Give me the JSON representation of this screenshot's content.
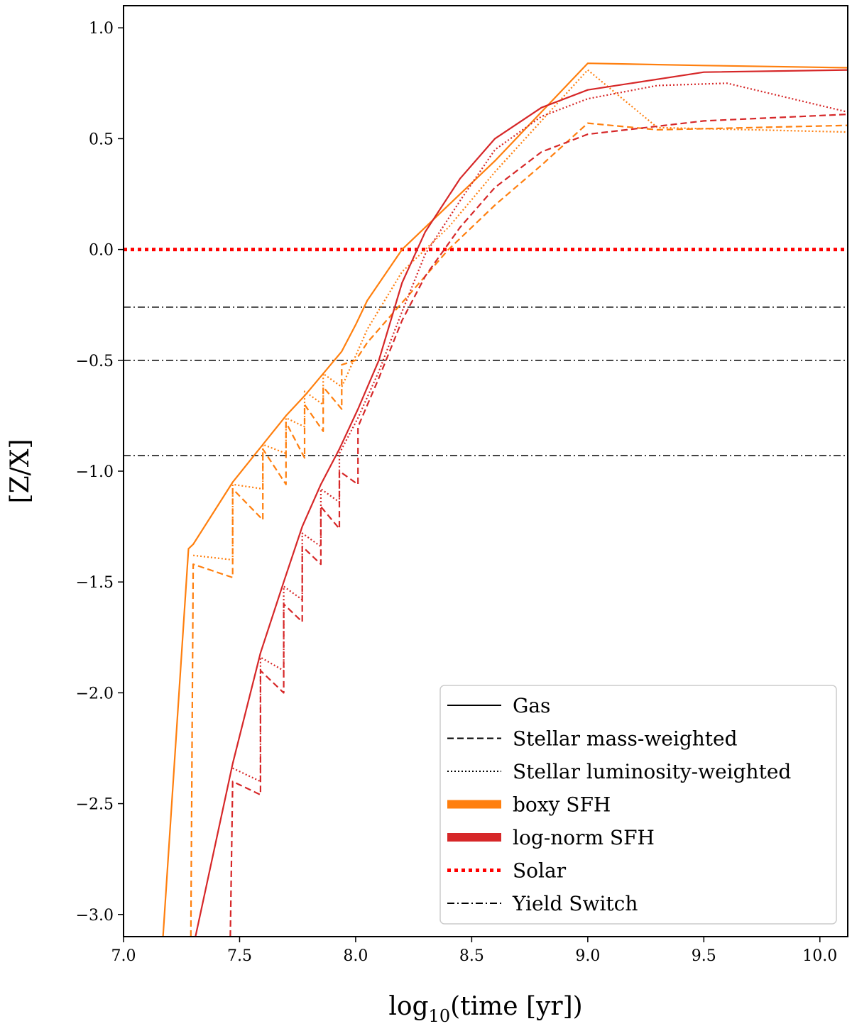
{
  "chart_data": {
    "type": "line",
    "title": "",
    "xlabel": "log10(time [yr])",
    "xlabel_parts": {
      "pre": "log",
      "sub": "10",
      "post": "(time [yr])"
    },
    "ylabel": "[Z/X]",
    "xlim": [
      7.0,
      10.12
    ],
    "ylim": [
      -3.1,
      1.1
    ],
    "x_ticks": [
      7.0,
      7.5,
      8.0,
      8.5,
      9.0,
      9.5,
      10.0
    ],
    "x_tick_labels": [
      "7.0",
      "7.5",
      "8.0",
      "8.5",
      "9.0",
      "9.5",
      "10.0"
    ],
    "y_ticks": [
      1.0,
      0.5,
      0.0,
      -0.5,
      -1.0,
      -1.5,
      -2.0,
      -2.5,
      -3.0
    ],
    "y_tick_labels": [
      "1.0",
      "0.5",
      "0.0",
      "−0.5",
      "−1.0",
      "−1.5",
      "−2.0",
      "−2.5",
      "−3.0"
    ],
    "grid": false,
    "legend_position": "bottom-right",
    "colors": {
      "boxy": "#ff7f0e",
      "lognorm": "#d62728",
      "solar": "#ff0000",
      "yield": "#000000"
    },
    "reference_lines": {
      "solar": 0.0,
      "yield_switch": [
        -0.26,
        -0.5,
        -0.93
      ]
    },
    "series": [
      {
        "name": "boxy SFH gas",
        "color": "boxy",
        "style": "solid",
        "x": [
          7.17,
          7.28,
          7.3,
          7.47,
          7.6,
          7.7,
          7.78,
          7.86,
          7.94,
          8.0,
          8.05,
          8.2,
          8.4,
          8.6,
          8.8,
          9.0,
          9.5,
          10.12
        ],
        "y": [
          -3.1,
          -1.35,
          -1.33,
          -1.05,
          -0.88,
          -0.75,
          -0.66,
          -0.56,
          -0.46,
          -0.34,
          -0.23,
          0.0,
          0.2,
          0.4,
          0.62,
          0.84,
          0.83,
          0.82
        ]
      },
      {
        "name": "boxy SFH mass-weighted",
        "color": "boxy",
        "style": "dashed",
        "x": [
          7.29,
          7.3,
          7.47,
          7.47,
          7.6,
          7.6,
          7.7,
          7.7,
          7.78,
          7.78,
          7.86,
          7.86,
          7.94,
          7.94,
          8.0,
          8.05,
          8.2,
          8.4,
          8.6,
          8.8,
          9.0,
          9.3,
          10.12
        ],
        "y": [
          -3.1,
          -1.42,
          -1.48,
          -1.08,
          -1.22,
          -0.9,
          -1.06,
          -0.78,
          -0.94,
          -0.7,
          -0.82,
          -0.62,
          -0.72,
          -0.52,
          -0.5,
          -0.42,
          -0.24,
          0.0,
          0.2,
          0.38,
          0.57,
          0.54,
          0.56
        ]
      },
      {
        "name": "boxy SFH luminosity-weighted",
        "color": "boxy",
        "style": "dotted",
        "x": [
          7.3,
          7.47,
          7.47,
          7.6,
          7.6,
          7.7,
          7.7,
          7.78,
          7.78,
          7.86,
          7.86,
          7.94,
          8.0,
          8.05,
          8.2,
          8.4,
          8.6,
          8.8,
          9.0,
          9.3,
          10.12
        ],
        "y": [
          -1.38,
          -1.4,
          -1.06,
          -1.08,
          -0.88,
          -0.92,
          -0.76,
          -0.8,
          -0.64,
          -0.7,
          -0.56,
          -0.62,
          -0.48,
          -0.36,
          -0.1,
          0.1,
          0.35,
          0.58,
          0.81,
          0.55,
          0.53
        ]
      },
      {
        "name": "log-norm SFH gas",
        "color": "lognorm",
        "style": "solid",
        "x": [
          7.31,
          7.47,
          7.59,
          7.69,
          7.77,
          7.85,
          7.93,
          8.01,
          8.1,
          8.2,
          8.3,
          8.45,
          8.6,
          8.8,
          9.0,
          9.5,
          10.12
        ],
        "y": [
          -3.1,
          -2.32,
          -1.82,
          -1.5,
          -1.25,
          -1.06,
          -0.9,
          -0.72,
          -0.5,
          -0.15,
          0.08,
          0.32,
          0.5,
          0.64,
          0.72,
          0.8,
          0.81
        ]
      },
      {
        "name": "log-norm SFH mass-weighted",
        "color": "lognorm",
        "style": "dashed",
        "x": [
          7.46,
          7.47,
          7.59,
          7.59,
          7.69,
          7.69,
          7.77,
          7.77,
          7.85,
          7.85,
          7.93,
          7.93,
          8.01,
          8.01,
          8.1,
          8.2,
          8.3,
          8.45,
          8.6,
          8.8,
          9.0,
          9.5,
          10.12
        ],
        "y": [
          -3.1,
          -2.4,
          -2.46,
          -1.9,
          -2.0,
          -1.6,
          -1.68,
          -1.34,
          -1.42,
          -1.16,
          -1.26,
          -1.0,
          -1.06,
          -0.8,
          -0.58,
          -0.32,
          -0.12,
          0.1,
          0.28,
          0.44,
          0.52,
          0.58,
          0.61
        ]
      },
      {
        "name": "log-norm SFH luminosity-weighted",
        "color": "lognorm",
        "style": "dotted",
        "x": [
          7.47,
          7.59,
          7.59,
          7.69,
          7.69,
          7.77,
          7.77,
          7.85,
          7.85,
          7.93,
          7.93,
          8.01,
          8.1,
          8.2,
          8.3,
          8.45,
          8.6,
          8.8,
          9.0,
          9.3,
          9.6,
          10.12
        ],
        "y": [
          -2.34,
          -2.4,
          -1.84,
          -1.9,
          -1.52,
          -1.58,
          -1.28,
          -1.34,
          -1.08,
          -1.14,
          -0.92,
          -0.76,
          -0.55,
          -0.28,
          -0.02,
          0.22,
          0.45,
          0.6,
          0.68,
          0.74,
          0.75,
          0.62
        ]
      }
    ],
    "legend": [
      {
        "label": "Gas",
        "style": "solid",
        "color": "yield"
      },
      {
        "label": "Stellar mass-weighted",
        "style": "dashed",
        "color": "yield"
      },
      {
        "label": "Stellar luminosity-weighted",
        "style": "dotted",
        "color": "yield"
      },
      {
        "label": "boxy SFH",
        "style": "thick",
        "color": "boxy"
      },
      {
        "label": "log-norm SFH",
        "style": "thick",
        "color": "lognorm"
      },
      {
        "label": "Solar",
        "style": "bigdot",
        "color": "solar"
      },
      {
        "label": "Yield Switch",
        "style": "dashdot",
        "color": "yield"
      }
    ]
  }
}
